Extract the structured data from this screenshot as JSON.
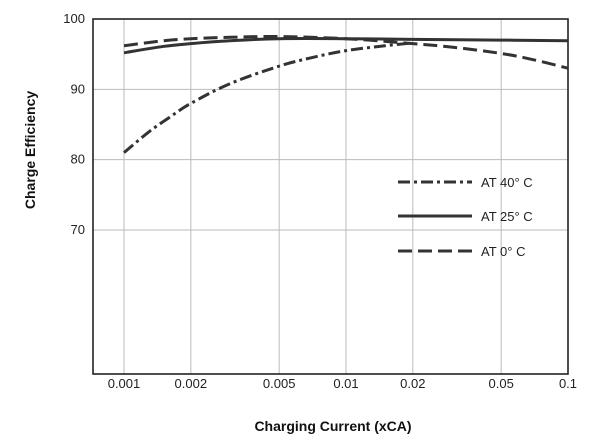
{
  "chart_data": {
    "type": "line",
    "title": "",
    "xlabel": "Charging Current (xCA)",
    "ylabel": "Charge Efficiency",
    "xscale": "log",
    "xlim": [
      0.00065,
      0.1
    ],
    "ylim": [
      50,
      100
    ],
    "x_ticks": [
      0.001,
      0.002,
      0.005,
      0.01,
      0.02,
      0.05,
      0.1
    ],
    "x_tick_labels": [
      "0.001",
      "0.002",
      "0.005",
      "0.01",
      "0.02",
      "0.05",
      "0.1"
    ],
    "y_ticks": [
      70,
      80,
      90,
      100
    ],
    "y_tick_labels": [
      "70",
      "80",
      "90",
      "100"
    ],
    "grid": true,
    "legend_position": "right",
    "colors": {
      "series": "#333333",
      "grid": "#bbbbbb",
      "frame": "#222222"
    },
    "series": [
      {
        "name": "AT 40° C",
        "style": "dash-dot",
        "x": [
          0.001,
          0.0013,
          0.0016,
          0.002,
          0.003,
          0.005,
          0.007,
          0.01,
          0.015,
          0.02
        ],
        "y": [
          81,
          84,
          86,
          88,
          90.8,
          93.3,
          94.5,
          95.5,
          96.2,
          96.6
        ]
      },
      {
        "name": "AT 25° C",
        "style": "solid",
        "x": [
          0.001,
          0.0015,
          0.002,
          0.003,
          0.005,
          0.01,
          0.02,
          0.05,
          0.1
        ],
        "y": [
          95.2,
          96.1,
          96.5,
          96.9,
          97.2,
          97.2,
          97.1,
          97.0,
          96.9
        ]
      },
      {
        "name": "AT 0° C",
        "style": "dashed",
        "x": [
          0.001,
          0.0015,
          0.002,
          0.003,
          0.005,
          0.01,
          0.02,
          0.03,
          0.05,
          0.07,
          0.1
        ],
        "y": [
          96.2,
          96.9,
          97.2,
          97.4,
          97.5,
          97.2,
          96.5,
          96.0,
          95.1,
          94.2,
          93.0
        ]
      }
    ]
  }
}
